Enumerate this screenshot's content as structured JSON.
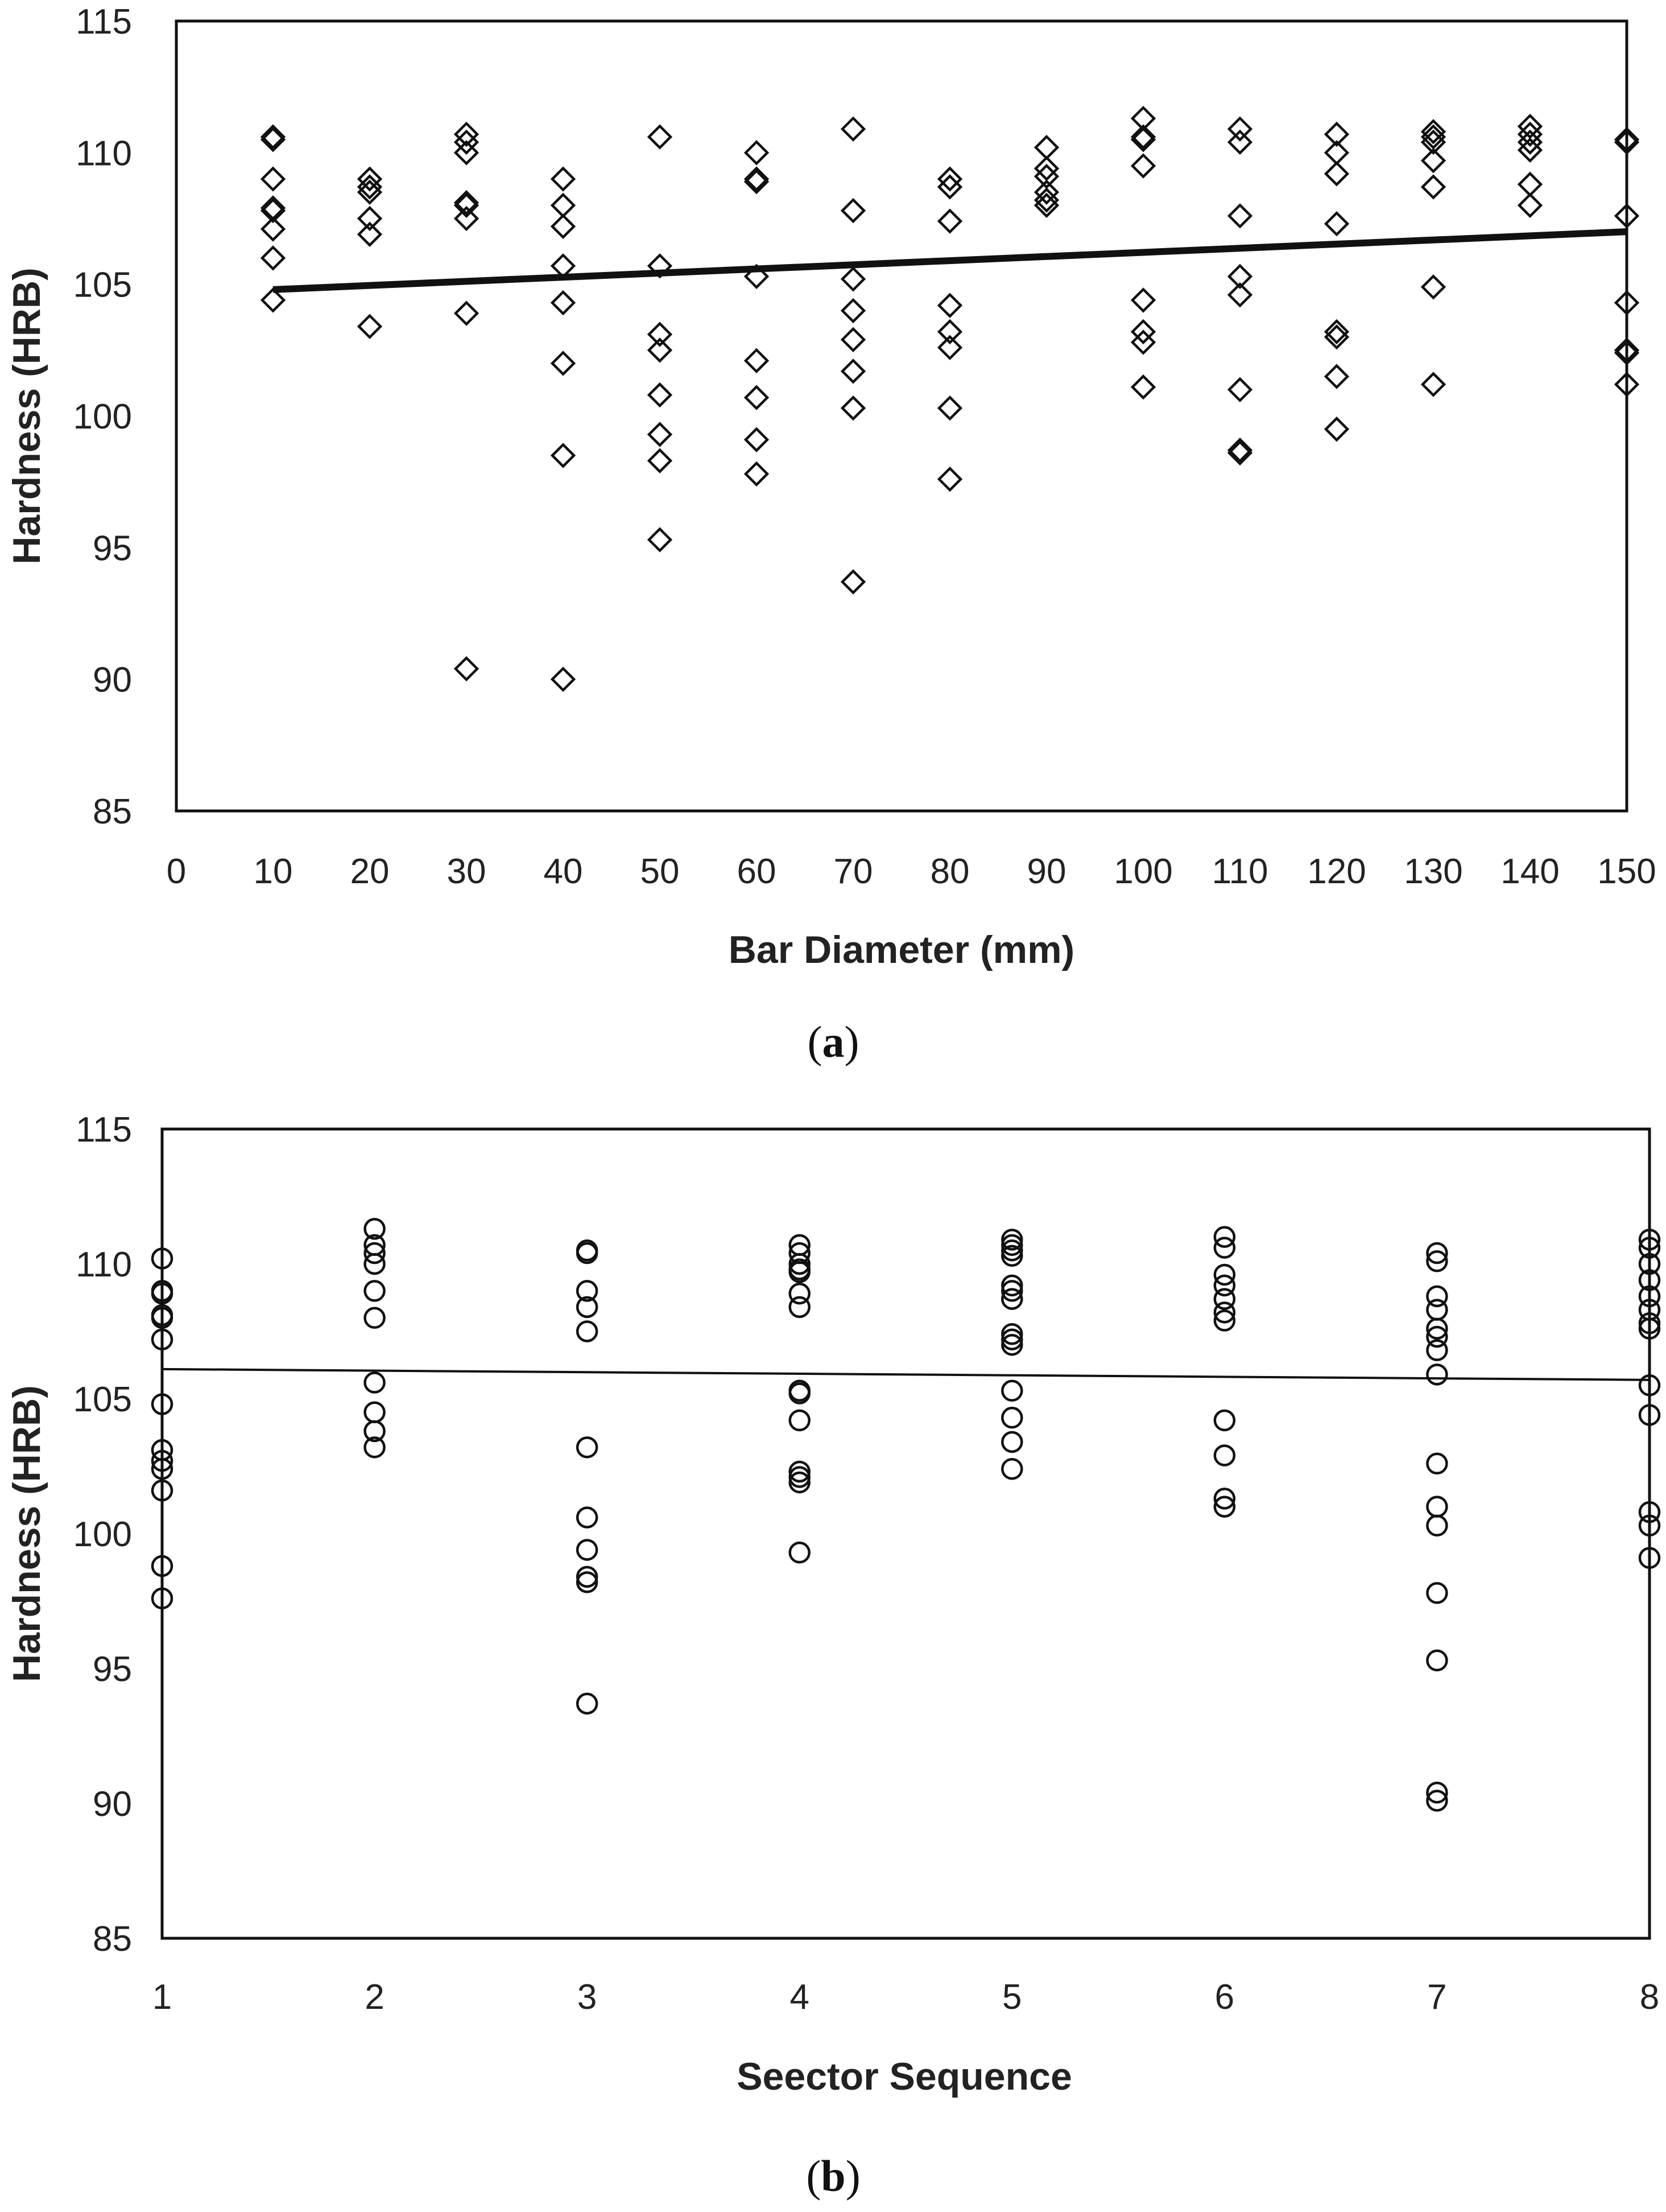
{
  "colors": {
    "background": "#ffffff",
    "ink": "#111111"
  },
  "chart_data": [
    {
      "id": "a",
      "type": "scatter",
      "marker": "diamond",
      "panel_label": "a",
      "title": "",
      "xlabel": "Bar Diameter (mm)",
      "ylabel": "Hardness (HRB)",
      "xlim": [
        0,
        150
      ],
      "ylim": [
        85,
        115
      ],
      "xticks": [
        0,
        10,
        20,
        30,
        40,
        50,
        60,
        70,
        80,
        90,
        100,
        110,
        120,
        130,
        140,
        150
      ],
      "yticks": [
        85,
        90,
        95,
        100,
        105,
        110,
        115
      ],
      "grid": false,
      "series": [
        {
          "name": "Hardness",
          "points": [
            [
              10,
              110.6
            ],
            [
              10,
              110.5
            ],
            [
              10,
              109.0
            ],
            [
              10,
              107.9
            ],
            [
              10,
              107.8
            ],
            [
              10,
              107.1
            ],
            [
              10,
              106.0
            ],
            [
              10,
              104.4
            ],
            [
              20,
              109.0
            ],
            [
              20,
              108.7
            ],
            [
              20,
              108.5
            ],
            [
              20,
              107.5
            ],
            [
              20,
              106.9
            ],
            [
              20,
              103.4
            ],
            [
              30,
              110.7
            ],
            [
              30,
              110.4
            ],
            [
              30,
              110.0
            ],
            [
              30,
              108.1
            ],
            [
              30,
              108.0
            ],
            [
              30,
              107.5
            ],
            [
              30,
              103.9
            ],
            [
              30,
              90.4
            ],
            [
              40,
              109.0
            ],
            [
              40,
              108.0
            ],
            [
              40,
              107.2
            ],
            [
              40,
              105.7
            ],
            [
              40,
              104.3
            ],
            [
              40,
              102.0
            ],
            [
              40,
              98.5
            ],
            [
              40,
              90.0
            ],
            [
              50,
              110.6
            ],
            [
              50,
              105.7
            ],
            [
              50,
              103.1
            ],
            [
              50,
              102.5
            ],
            [
              50,
              100.8
            ],
            [
              50,
              99.3
            ],
            [
              50,
              98.3
            ],
            [
              50,
              95.3
            ],
            [
              60,
              110.0
            ],
            [
              60,
              109.0
            ],
            [
              60,
              108.9
            ],
            [
              60,
              105.3
            ],
            [
              60,
              102.1
            ],
            [
              60,
              100.7
            ],
            [
              60,
              99.1
            ],
            [
              60,
              97.8
            ],
            [
              70,
              110.9
            ],
            [
              70,
              107.8
            ],
            [
              70,
              105.2
            ],
            [
              70,
              104.0
            ],
            [
              70,
              102.9
            ],
            [
              70,
              101.7
            ],
            [
              70,
              100.3
            ],
            [
              70,
              93.7
            ],
            [
              80,
              109.0
            ],
            [
              80,
              108.7
            ],
            [
              80,
              107.4
            ],
            [
              80,
              104.2
            ],
            [
              80,
              103.2
            ],
            [
              80,
              102.6
            ],
            [
              80,
              100.3
            ],
            [
              80,
              97.6
            ],
            [
              90,
              110.2
            ],
            [
              90,
              109.4
            ],
            [
              90,
              109.1
            ],
            [
              90,
              108.5
            ],
            [
              90,
              108.2
            ],
            [
              90,
              108.0
            ],
            [
              100,
              111.3
            ],
            [
              100,
              110.6
            ],
            [
              100,
              110.5
            ],
            [
              100,
              109.5
            ],
            [
              100,
              104.4
            ],
            [
              100,
              103.2
            ],
            [
              100,
              102.8
            ],
            [
              100,
              101.1
            ],
            [
              110,
              110.9
            ],
            [
              110,
              110.4
            ],
            [
              110,
              107.6
            ],
            [
              110,
              105.3
            ],
            [
              110,
              104.6
            ],
            [
              110,
              101.0
            ],
            [
              110,
              98.7
            ],
            [
              110,
              98.6
            ],
            [
              120,
              110.7
            ],
            [
              120,
              110.0
            ],
            [
              120,
              109.2
            ],
            [
              120,
              107.3
            ],
            [
              120,
              103.2
            ],
            [
              120,
              103.0
            ],
            [
              120,
              101.5
            ],
            [
              120,
              99.5
            ],
            [
              130,
              110.8
            ],
            [
              130,
              110.6
            ],
            [
              130,
              110.4
            ],
            [
              130,
              109.7
            ],
            [
              130,
              108.7
            ],
            [
              130,
              104.9
            ],
            [
              130,
              101.2
            ],
            [
              140,
              111.0
            ],
            [
              140,
              110.7
            ],
            [
              140,
              110.4
            ],
            [
              140,
              110.1
            ],
            [
              140,
              108.8
            ],
            [
              140,
              108.0
            ],
            [
              150,
              110.5
            ],
            [
              150,
              110.4
            ],
            [
              150,
              107.6
            ],
            [
              150,
              104.3
            ],
            [
              150,
              102.5
            ],
            [
              150,
              102.4
            ],
            [
              150,
              101.2
            ]
          ]
        }
      ],
      "trendline": {
        "x": [
          10,
          150
        ],
        "y": [
          104.8,
          107.0
        ],
        "width": "thick"
      }
    },
    {
      "id": "b",
      "type": "scatter",
      "marker": "circle",
      "panel_label": "b",
      "title": "",
      "xlabel": "Seector Sequence",
      "ylabel": "Hardness (HRB)",
      "xlim": [
        1,
        8
      ],
      "ylim": [
        85,
        115
      ],
      "xticks": [
        1,
        2,
        3,
        4,
        5,
        6,
        7,
        8
      ],
      "yticks": [
        85,
        90,
        95,
        100,
        105,
        110,
        115
      ],
      "grid": false,
      "series": [
        {
          "name": "Hardness",
          "points": [
            [
              1,
              110.2
            ],
            [
              1,
              109.0
            ],
            [
              1,
              108.9
            ],
            [
              1,
              108.1
            ],
            [
              1,
              108.0
            ],
            [
              1,
              107.2
            ],
            [
              1,
              104.8
            ],
            [
              1,
              103.1
            ],
            [
              1,
              102.7
            ],
            [
              1,
              102.4
            ],
            [
              1,
              101.6
            ],
            [
              1,
              98.8
            ],
            [
              1,
              97.6
            ],
            [
              2,
              111.3
            ],
            [
              2,
              110.7
            ],
            [
              2,
              110.4
            ],
            [
              2,
              110.0
            ],
            [
              2,
              109.0
            ],
            [
              2,
              108.0
            ],
            [
              2,
              105.6
            ],
            [
              2,
              104.5
            ],
            [
              2,
              103.8
            ],
            [
              2,
              103.2
            ],
            [
              3,
              110.5
            ],
            [
              3,
              110.4
            ],
            [
              3,
              109.0
            ],
            [
              3,
              108.4
            ],
            [
              3,
              107.5
            ],
            [
              3,
              103.2
            ],
            [
              3,
              100.6
            ],
            [
              3,
              99.4
            ],
            [
              3,
              98.4
            ],
            [
              3,
              98.2
            ],
            [
              3,
              93.7
            ],
            [
              4,
              110.7
            ],
            [
              4,
              110.4
            ],
            [
              4,
              110.0
            ],
            [
              4,
              109.8
            ],
            [
              4,
              109.7
            ],
            [
              4,
              108.9
            ],
            [
              4,
              108.4
            ],
            [
              4,
              105.3
            ],
            [
              4,
              105.2
            ],
            [
              4,
              104.2
            ],
            [
              4,
              102.3
            ],
            [
              4,
              102.1
            ],
            [
              4,
              101.9
            ],
            [
              4,
              99.3
            ],
            [
              5,
              110.9
            ],
            [
              5,
              110.7
            ],
            [
              5,
              110.5
            ],
            [
              5,
              110.3
            ],
            [
              5,
              109.2
            ],
            [
              5,
              109.0
            ],
            [
              5,
              108.7
            ],
            [
              5,
              107.4
            ],
            [
              5,
              107.2
            ],
            [
              5,
              107.0
            ],
            [
              5,
              105.3
            ],
            [
              5,
              104.3
            ],
            [
              5,
              103.4
            ],
            [
              5,
              102.4
            ],
            [
              6,
              111.0
            ],
            [
              6,
              110.6
            ],
            [
              6,
              109.6
            ],
            [
              6,
              109.2
            ],
            [
              6,
              108.7
            ],
            [
              6,
              108.2
            ],
            [
              6,
              107.9
            ],
            [
              6,
              104.2
            ],
            [
              6,
              102.9
            ],
            [
              6,
              101.3
            ],
            [
              6,
              101.0
            ],
            [
              7,
              110.4
            ],
            [
              7,
              110.1
            ],
            [
              7,
              108.8
            ],
            [
              7,
              108.3
            ],
            [
              7,
              107.6
            ],
            [
              7,
              107.3
            ],
            [
              7,
              106.8
            ],
            [
              7,
              105.9
            ],
            [
              7,
              102.6
            ],
            [
              7,
              101.0
            ],
            [
              7,
              100.3
            ],
            [
              7,
              97.8
            ],
            [
              7,
              95.3
            ],
            [
              7,
              90.4
            ],
            [
              7,
              90.1
            ],
            [
              8,
              110.9
            ],
            [
              8,
              110.6
            ],
            [
              8,
              110.0
            ],
            [
              8,
              109.4
            ],
            [
              8,
              108.8
            ],
            [
              8,
              108.3
            ],
            [
              8,
              107.8
            ],
            [
              8,
              107.6
            ],
            [
              8,
              105.5
            ],
            [
              8,
              104.4
            ],
            [
              8,
              100.8
            ],
            [
              8,
              100.3
            ],
            [
              8,
              99.1
            ]
          ]
        }
      ],
      "trendline": {
        "x": [
          1,
          8
        ],
        "y": [
          106.1,
          105.7
        ],
        "width": "thin"
      }
    }
  ]
}
